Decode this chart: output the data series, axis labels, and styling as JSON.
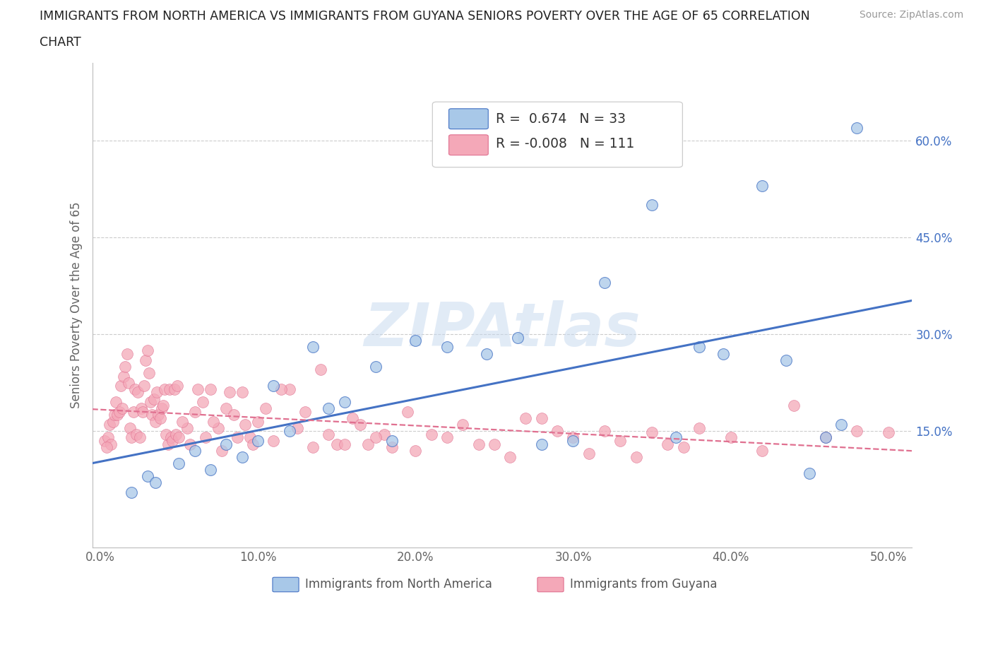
{
  "title_line1": "IMMIGRANTS FROM NORTH AMERICA VS IMMIGRANTS FROM GUYANA SENIORS POVERTY OVER THE AGE OF 65 CORRELATION",
  "title_line2": "CHART",
  "source_text": "Source: ZipAtlas.com",
  "ylabel": "Seniors Poverty Over the Age of 65",
  "xlim": [
    -0.005,
    0.515
  ],
  "ylim": [
    -0.03,
    0.72
  ],
  "xtick_vals": [
    0.0,
    0.1,
    0.2,
    0.3,
    0.4,
    0.5
  ],
  "xticklabels": [
    "0.0%",
    "10.0%",
    "20.0%",
    "30.0%",
    "40.0%",
    "50.0%"
  ],
  "ytick_vals": [
    0.0,
    0.15,
    0.3,
    0.45,
    0.6
  ],
  "yticklabels_right": [
    "",
    "15.0%",
    "30.0%",
    "45.0%",
    "60.0%"
  ],
  "blue_R": 0.674,
  "blue_N": 33,
  "pink_R": -0.008,
  "pink_N": 111,
  "blue_fill": "#a8c8e8",
  "pink_fill": "#f4a8b8",
  "blue_edge": "#4472c4",
  "pink_edge": "#e07090",
  "blue_line": "#4472c4",
  "pink_line": "#e07090",
  "watermark": "ZIPAtlas",
  "legend_label_blue": "Immigrants from North America",
  "legend_label_pink": "Immigrants from Guyana",
  "blue_x": [
    0.02,
    0.03,
    0.035,
    0.05,
    0.06,
    0.07,
    0.08,
    0.09,
    0.1,
    0.11,
    0.12,
    0.135,
    0.145,
    0.155,
    0.175,
    0.185,
    0.2,
    0.22,
    0.245,
    0.265,
    0.28,
    0.3,
    0.32,
    0.35,
    0.365,
    0.38,
    0.395,
    0.42,
    0.435,
    0.45,
    0.46,
    0.47,
    0.48
  ],
  "blue_y": [
    0.055,
    0.08,
    0.07,
    0.1,
    0.12,
    0.09,
    0.13,
    0.11,
    0.135,
    0.22,
    0.15,
    0.28,
    0.185,
    0.195,
    0.25,
    0.135,
    0.29,
    0.28,
    0.27,
    0.295,
    0.13,
    0.135,
    0.38,
    0.5,
    0.14,
    0.28,
    0.27,
    0.53,
    0.26,
    0.085,
    0.14,
    0.16,
    0.62
  ],
  "pink_x": [
    0.003,
    0.005,
    0.006,
    0.007,
    0.008,
    0.009,
    0.01,
    0.011,
    0.012,
    0.013,
    0.014,
    0.015,
    0.016,
    0.017,
    0.018,
    0.019,
    0.02,
    0.021,
    0.022,
    0.023,
    0.024,
    0.025,
    0.026,
    0.027,
    0.028,
    0.029,
    0.03,
    0.031,
    0.032,
    0.033,
    0.034,
    0.035,
    0.036,
    0.037,
    0.038,
    0.039,
    0.04,
    0.041,
    0.042,
    0.043,
    0.044,
    0.045,
    0.046,
    0.047,
    0.048,
    0.05,
    0.055,
    0.06,
    0.065,
    0.07,
    0.075,
    0.08,
    0.085,
    0.09,
    0.095,
    0.1,
    0.11,
    0.12,
    0.13,
    0.14,
    0.15,
    0.16,
    0.17,
    0.18,
    0.2,
    0.22,
    0.24,
    0.26,
    0.28,
    0.3,
    0.32,
    0.34,
    0.36,
    0.38,
    0.4,
    0.42,
    0.44,
    0.46,
    0.48,
    0.5,
    0.004,
    0.049,
    0.052,
    0.057,
    0.062,
    0.067,
    0.072,
    0.077,
    0.082,
    0.087,
    0.092,
    0.097,
    0.105,
    0.115,
    0.125,
    0.135,
    0.145,
    0.155,
    0.165,
    0.175,
    0.185,
    0.195,
    0.21,
    0.23,
    0.25,
    0.27,
    0.29,
    0.31,
    0.33,
    0.35,
    0.37
  ],
  "pink_y": [
    0.135,
    0.14,
    0.16,
    0.13,
    0.165,
    0.175,
    0.195,
    0.175,
    0.18,
    0.22,
    0.185,
    0.235,
    0.25,
    0.27,
    0.225,
    0.155,
    0.14,
    0.18,
    0.215,
    0.145,
    0.21,
    0.14,
    0.185,
    0.18,
    0.22,
    0.26,
    0.275,
    0.24,
    0.195,
    0.175,
    0.2,
    0.165,
    0.21,
    0.175,
    0.17,
    0.185,
    0.19,
    0.215,
    0.145,
    0.13,
    0.215,
    0.14,
    0.135,
    0.215,
    0.145,
    0.14,
    0.155,
    0.18,
    0.195,
    0.215,
    0.155,
    0.185,
    0.175,
    0.21,
    0.14,
    0.165,
    0.135,
    0.215,
    0.18,
    0.245,
    0.13,
    0.17,
    0.13,
    0.145,
    0.12,
    0.14,
    0.13,
    0.11,
    0.17,
    0.14,
    0.15,
    0.11,
    0.13,
    0.155,
    0.14,
    0.12,
    0.19,
    0.14,
    0.15,
    0.148,
    0.125,
    0.22,
    0.165,
    0.13,
    0.215,
    0.14,
    0.165,
    0.12,
    0.21,
    0.14,
    0.16,
    0.13,
    0.185,
    0.215,
    0.155,
    0.125,
    0.145,
    0.13,
    0.16,
    0.14,
    0.125,
    0.18,
    0.145,
    0.16,
    0.13,
    0.17,
    0.15,
    0.115,
    0.135,
    0.148,
    0.125
  ]
}
